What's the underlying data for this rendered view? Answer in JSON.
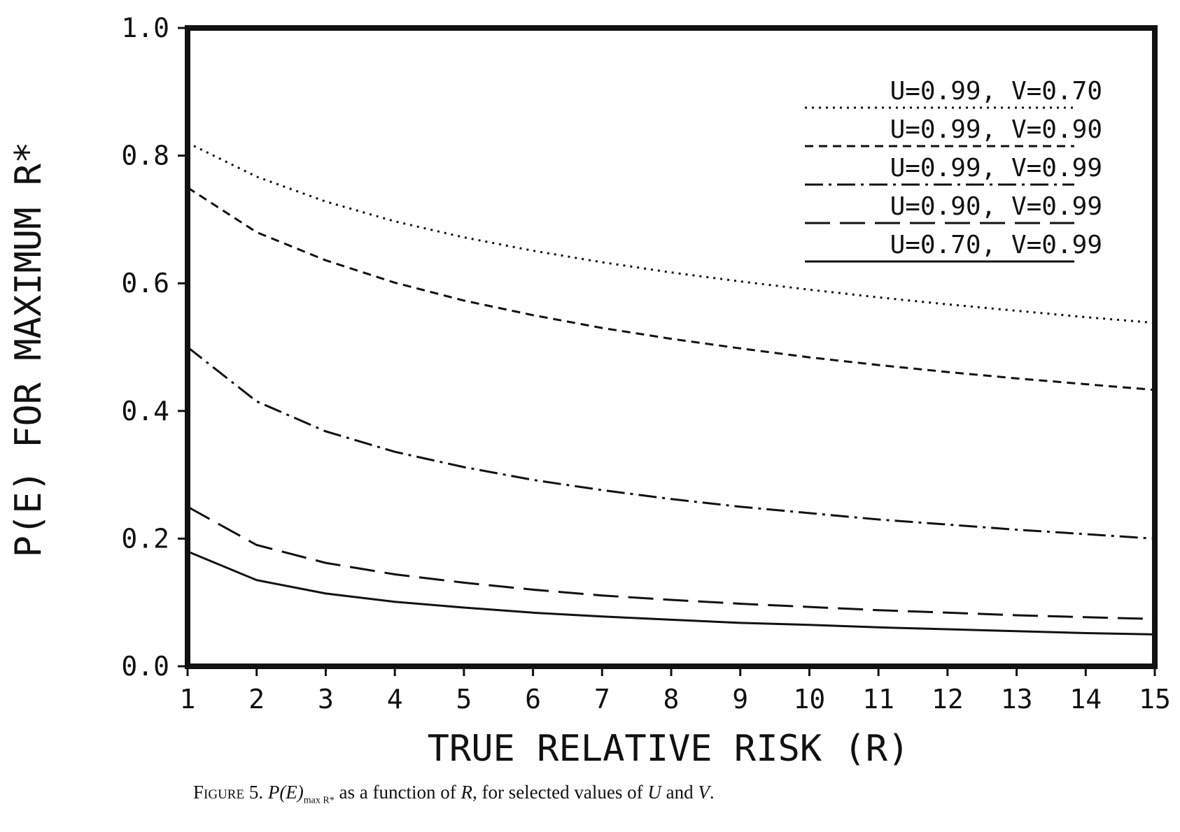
{
  "chart_data": {
    "type": "line",
    "xlabel": "TRUE RELATIVE RISK (R)",
    "ylabel": "P(E) FOR MAXIMUM R*",
    "xlim": [
      1,
      15
    ],
    "ylim": [
      0.0,
      1.0
    ],
    "xticks": [
      "1",
      "2",
      "3",
      "4",
      "5",
      "6",
      "7",
      "8",
      "9",
      "10",
      "11",
      "12",
      "13",
      "14",
      "15"
    ],
    "yticks": [
      "0.0",
      "0.2",
      "0.4",
      "0.6",
      "0.8",
      "1.0"
    ],
    "legend_position": "top-right",
    "x": [
      1,
      2,
      3,
      4,
      5,
      6,
      7,
      8,
      9,
      10,
      11,
      12,
      13,
      14,
      15
    ],
    "series": [
      {
        "name": "U=0.99, V=0.70",
        "style": "dotted",
        "values": [
          0.82,
          0.767,
          0.728,
          0.697,
          0.672,
          0.651,
          0.633,
          0.617,
          0.603,
          0.59,
          0.578,
          0.567,
          0.557,
          0.547,
          0.538
        ]
      },
      {
        "name": "U=0.99, V=0.90",
        "style": "short-dash",
        "values": [
          0.75,
          0.68,
          0.636,
          0.601,
          0.573,
          0.55,
          0.53,
          0.513,
          0.498,
          0.484,
          0.472,
          0.461,
          0.451,
          0.442,
          0.433
        ]
      },
      {
        "name": "U=0.99, V=0.99",
        "style": "dash-dot",
        "values": [
          0.5,
          0.415,
          0.368,
          0.336,
          0.312,
          0.292,
          0.276,
          0.262,
          0.25,
          0.24,
          0.23,
          0.222,
          0.214,
          0.207,
          0.2
        ]
      },
      {
        "name": "U=0.90, V=0.99",
        "style": "long-dash",
        "values": [
          0.25,
          0.19,
          0.162,
          0.144,
          0.131,
          0.12,
          0.111,
          0.104,
          0.098,
          0.093,
          0.088,
          0.084,
          0.08,
          0.077,
          0.074
        ]
      },
      {
        "name": "U=0.70, V=0.99",
        "style": "solid",
        "values": [
          0.18,
          0.135,
          0.114,
          0.101,
          0.092,
          0.084,
          0.078,
          0.073,
          0.068,
          0.065,
          0.061,
          0.058,
          0.055,
          0.052,
          0.05
        ]
      }
    ]
  },
  "caption": {
    "label": "Figure 5.",
    "expr": "P(E)",
    "sub": "max R*",
    "text": " as a function of ",
    "r": "R",
    "text2": ", for selected values of ",
    "u": "U",
    "and": " and ",
    "v": "V",
    "end": "."
  }
}
